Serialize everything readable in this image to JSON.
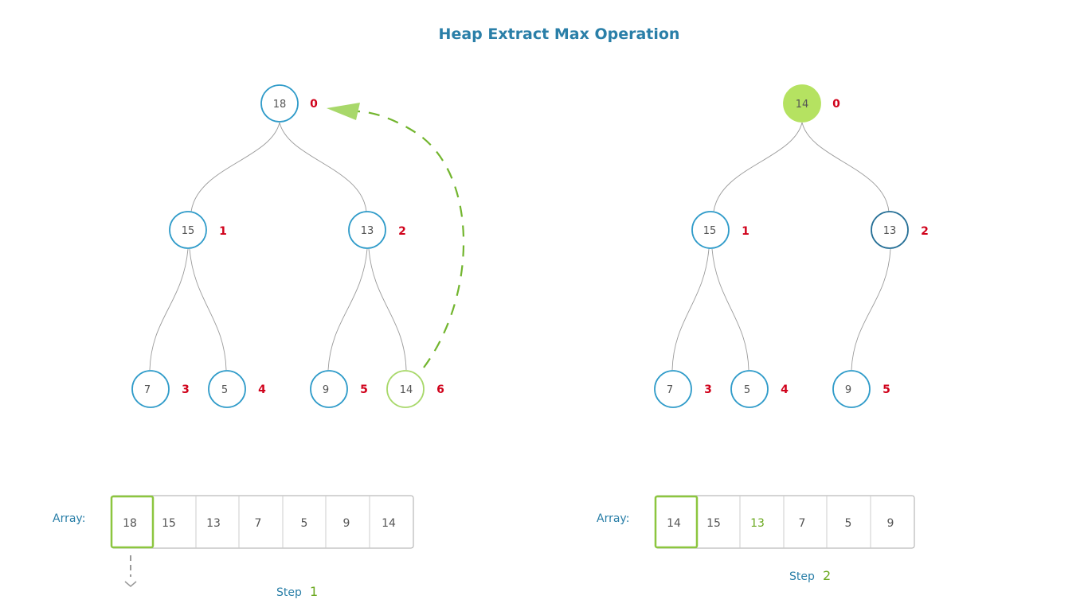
{
  "title": "Heap Extract Max Operation",
  "colors": {
    "node_stroke": "#2f9bc9",
    "node_highlight_stroke": "#a8d86a",
    "node_highlight_fill": "#b5e261",
    "index_color": "#d0021b",
    "arrow_color": "#72b52e",
    "edge_color": "#9a9a9a",
    "title_color": "#2a7fa8"
  },
  "panels": [
    {
      "id": "step1",
      "nodes": [
        {
          "value": "18",
          "index": "0"
        },
        {
          "value": "15",
          "index": "1"
        },
        {
          "value": "13",
          "index": "2"
        },
        {
          "value": "7",
          "index": "3"
        },
        {
          "value": "5",
          "index": "4"
        },
        {
          "value": "9",
          "index": "5"
        },
        {
          "value": "14",
          "index": "6",
          "highlight": "outline"
        }
      ],
      "array_label": "Array:",
      "array": [
        "18",
        "15",
        "13",
        "7",
        "5",
        "9",
        "14"
      ],
      "array_highlight_index": 0,
      "step_label": "Step",
      "step_number": "1"
    },
    {
      "id": "step2",
      "nodes": [
        {
          "value": "14",
          "index": "0",
          "highlight": "fill"
        },
        {
          "value": "15",
          "index": "1"
        },
        {
          "value": "13",
          "index": "2"
        },
        {
          "value": "7",
          "index": "3"
        },
        {
          "value": "5",
          "index": "4"
        },
        {
          "value": "9",
          "index": "5"
        }
      ],
      "array_label": "Array:",
      "array": [
        "14",
        "15",
        "13",
        "7",
        "5",
        "9"
      ],
      "array_highlight_index": 0,
      "array_green_text_index": 2,
      "step_label": "Step",
      "step_number": "2"
    }
  ]
}
